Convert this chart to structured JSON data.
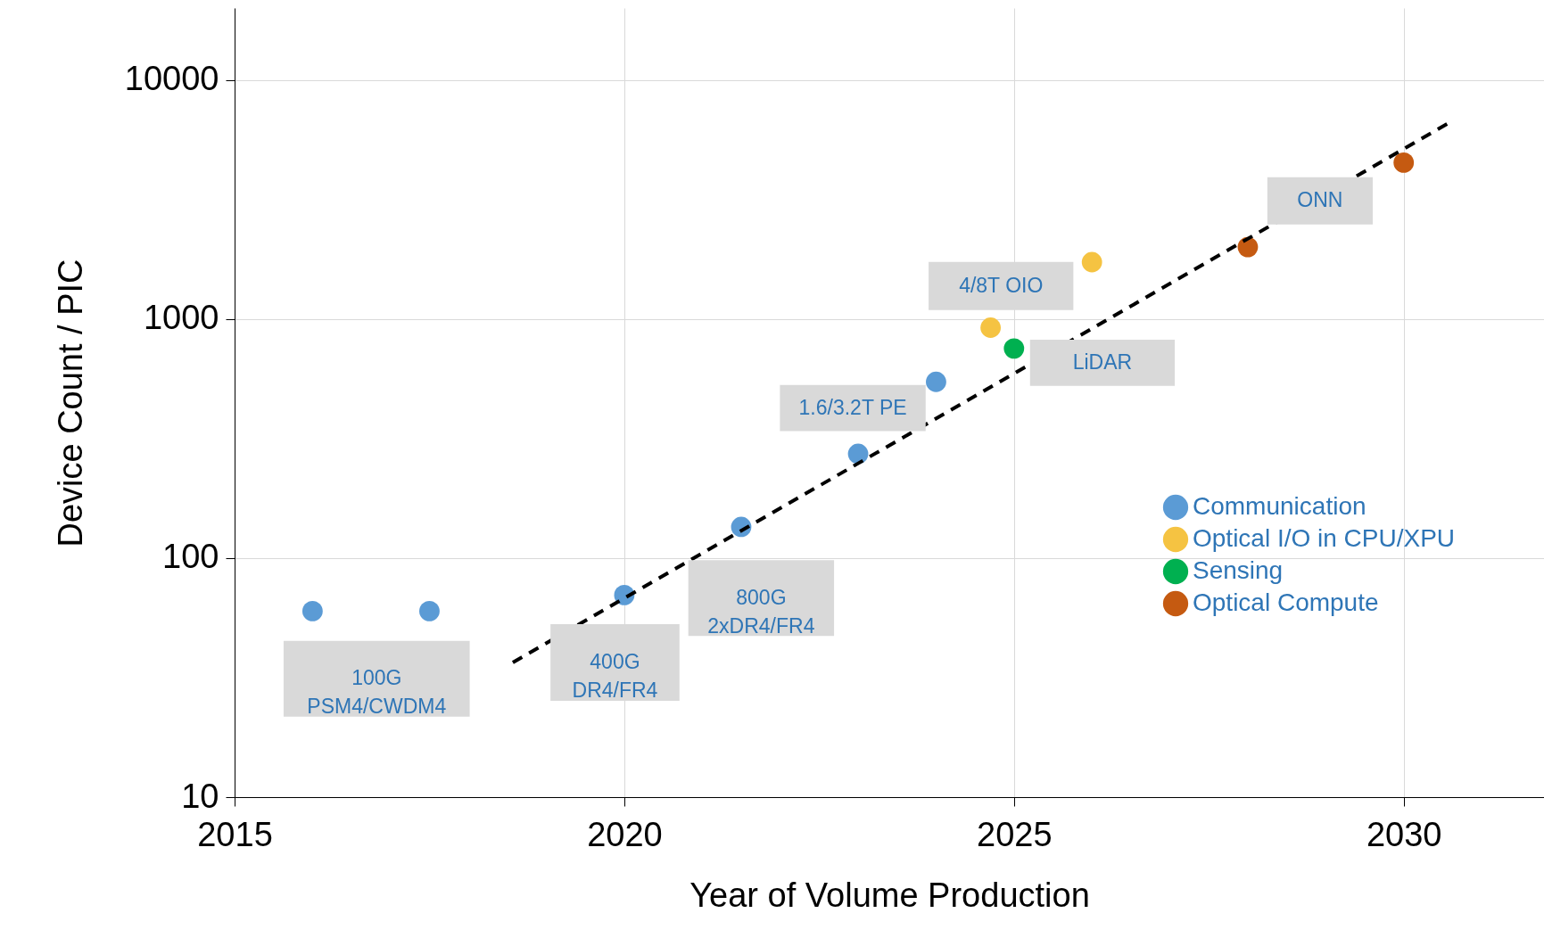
{
  "chart_data": {
    "type": "scatter",
    "xlabel": "Year of Volume Production",
    "ylabel": "Device Count / PIC",
    "log": "y",
    "grid": true,
    "legend": "right",
    "marker": "circle",
    "xlim": [
      2015,
      2031.8
    ],
    "xticks": [
      2015,
      2020,
      2025,
      2030
    ],
    "ylim": [
      10,
      20000
    ],
    "yticks": [
      10,
      100,
      1000,
      10000
    ],
    "series": [
      {
        "name": "Communication",
        "color": "#5b9bd5",
        "x": [
          2016,
          2017.5,
          2020,
          2021.5,
          2023,
          2024
        ],
        "values": [
          60,
          60,
          70,
          135,
          273,
          546
        ]
      },
      {
        "name": "Optical I/O in CPU/XPU",
        "color": "#f5c342",
        "x": [
          2024.7,
          2026
        ],
        "values": [
          920,
          1730
        ]
      },
      {
        "name": "Sensing",
        "color": "#00b050",
        "x": [
          2025
        ],
        "values": [
          753
        ]
      },
      {
        "name": "Optical Compute",
        "color": "#c55a11",
        "x": [
          2028,
          2030
        ],
        "values": [
          2000,
          4510
        ]
      },
      {
        "type": "line",
        "color": "#000000",
        "line_style": "dashed",
        "marker": "none",
        "x": [
          2018.57,
          2030.57
        ],
        "values": [
          36.6,
          6590
        ]
      }
    ],
    "annotations": [
      "100G\nPSM4/CWDM4",
      "400G\nDR4/FR4",
      "800G\n2xDR4/FR4",
      "1.6/3.2T PE",
      "4/8T OIO",
      "LiDAR",
      "ONN"
    ]
  }
}
